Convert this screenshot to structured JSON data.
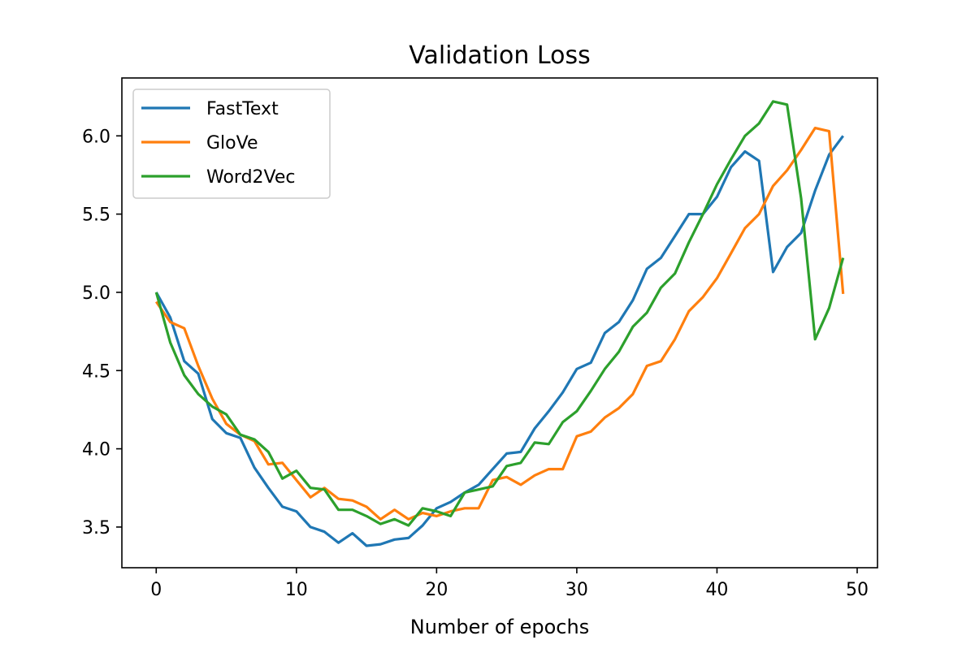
{
  "chart_data": {
    "type": "line",
    "title": "Validation Loss",
    "xlabel": "Number of epochs",
    "ylabel": "",
    "xlim": [
      -2.45,
      51.45
    ],
    "ylim": [
      3.24,
      6.37
    ],
    "xticks": [
      0,
      10,
      20,
      30,
      40,
      50
    ],
    "yticks": [
      3.5,
      4.0,
      4.5,
      5.0,
      5.5,
      6.0
    ],
    "xtick_labels": [
      "0",
      "10",
      "20",
      "30",
      "40",
      "50"
    ],
    "ytick_labels": [
      "3.5",
      "4.0",
      "4.5",
      "5.0",
      "5.5",
      "6.0"
    ],
    "grid": false,
    "legend_position": "upper-left",
    "x": [
      0,
      1,
      2,
      3,
      4,
      5,
      6,
      7,
      8,
      9,
      10,
      11,
      12,
      13,
      14,
      15,
      16,
      17,
      18,
      19,
      20,
      21,
      22,
      23,
      24,
      25,
      26,
      27,
      28,
      29,
      30,
      31,
      32,
      33,
      34,
      35,
      36,
      37,
      38,
      39,
      40,
      41,
      42,
      43,
      44,
      45,
      46,
      47,
      48,
      49
    ],
    "series": [
      {
        "name": "FastText",
        "color": "#1f77b4",
        "values": [
          5.0,
          4.84,
          4.56,
          4.48,
          4.19,
          4.1,
          4.07,
          3.88,
          3.75,
          3.63,
          3.6,
          3.5,
          3.47,
          3.4,
          3.46,
          3.38,
          3.39,
          3.42,
          3.43,
          3.51,
          3.62,
          3.66,
          3.72,
          3.77,
          3.87,
          3.97,
          3.98,
          4.13,
          4.24,
          4.36,
          4.51,
          4.55,
          4.74,
          4.81,
          4.95,
          5.15,
          5.22,
          5.36,
          5.5,
          5.5,
          5.61,
          5.8,
          5.9,
          5.84,
          5.13,
          5.29,
          5.38,
          5.65,
          5.88,
          6.0
        ]
      },
      {
        "name": "GloVe",
        "color": "#ff7f0e",
        "values": [
          4.94,
          4.81,
          4.77,
          4.53,
          4.32,
          4.16,
          4.09,
          4.05,
          3.9,
          3.91,
          3.8,
          3.69,
          3.75,
          3.68,
          3.67,
          3.63,
          3.55,
          3.61,
          3.55,
          3.59,
          3.57,
          3.6,
          3.62,
          3.62,
          3.8,
          3.82,
          3.77,
          3.83,
          3.87,
          3.87,
          4.08,
          4.11,
          4.2,
          4.26,
          4.35,
          4.53,
          4.56,
          4.7,
          4.88,
          4.97,
          5.09,
          5.25,
          5.41,
          5.5,
          5.68,
          5.78,
          5.91,
          6.05,
          6.03,
          4.99
        ]
      },
      {
        "name": "Word2Vec",
        "color": "#2ca02c",
        "values": [
          5.0,
          4.68,
          4.47,
          4.35,
          4.27,
          4.22,
          4.09,
          4.06,
          3.98,
          3.81,
          3.86,
          3.75,
          3.74,
          3.61,
          3.61,
          3.57,
          3.52,
          3.55,
          3.51,
          3.62,
          3.6,
          3.57,
          3.72,
          3.74,
          3.76,
          3.89,
          3.91,
          4.04,
          4.03,
          4.17,
          4.24,
          4.37,
          4.51,
          4.62,
          4.78,
          4.87,
          5.03,
          5.12,
          5.32,
          5.5,
          5.69,
          5.85,
          6.0,
          6.08,
          6.22,
          6.2,
          5.6,
          4.7,
          4.9,
          5.22
        ]
      }
    ]
  }
}
